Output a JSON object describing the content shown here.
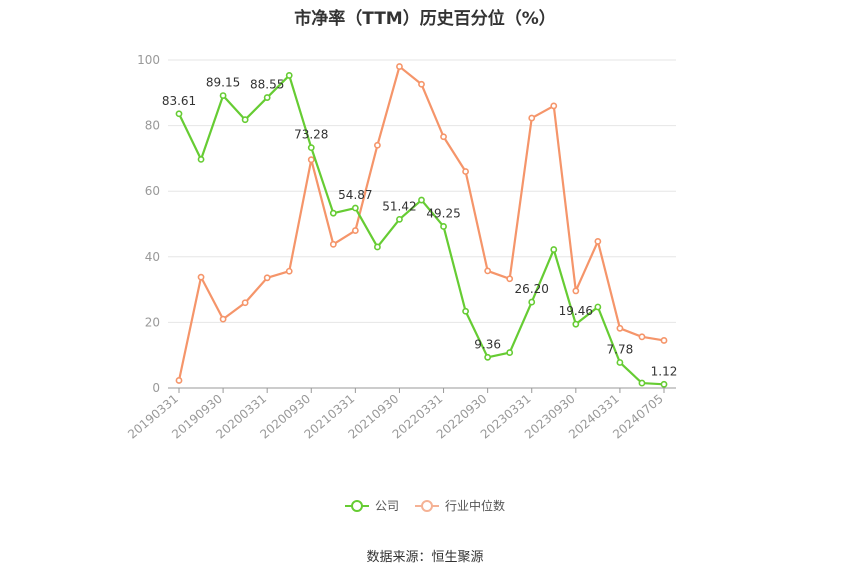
{
  "chart_data": {
    "type": "line",
    "title": "市净率（TTM）历史百分位（%）",
    "xlabel": "",
    "ylabel": "",
    "ylim": [
      0,
      100
    ],
    "yticks": [
      0,
      20,
      40,
      60,
      80,
      100
    ],
    "categories": [
      "20190331",
      "20190630",
      "20190930",
      "20191231",
      "20200331",
      "20200630",
      "20200930",
      "20201231",
      "20210331",
      "20210630",
      "20210930",
      "20211231",
      "20220331",
      "20220630",
      "20220930",
      "20221231",
      "20230331",
      "20230630",
      "20230930",
      "20231231",
      "20240331",
      "20240630",
      "20240705"
    ],
    "xtick_labels": [
      "20190331",
      "20190930",
      "20200331",
      "20200930",
      "20210331",
      "20210930",
      "20220331",
      "20220930",
      "20230331",
      "20230930",
      "20240331",
      "20240705"
    ],
    "series": [
      {
        "name": "公司",
        "color": "#66cc33",
        "values": [
          83.61,
          69.7,
          89.15,
          81.8,
          88.55,
          95.3,
          73.28,
          53.3,
          54.87,
          43.0,
          51.42,
          57.3,
          49.25,
          23.4,
          9.36,
          10.8,
          26.2,
          42.2,
          19.46,
          24.7,
          7.78,
          1.5,
          1.12
        ]
      },
      {
        "name": "行业中位数",
        "color": "#f5956a",
        "values": [
          2.3,
          33.8,
          21.0,
          26.0,
          33.6,
          35.6,
          69.6,
          43.8,
          48.0,
          74.0,
          98.0,
          92.6,
          76.6,
          66.0,
          35.7,
          33.3,
          82.3,
          86.0,
          29.6,
          44.7,
          18.2,
          15.6,
          14.5
        ]
      }
    ],
    "data_labels": {
      "series": "公司",
      "indices": [
        0,
        2,
        4,
        6,
        8,
        10,
        12,
        14,
        16,
        18,
        20,
        22
      ],
      "texts": [
        "83.61",
        "89.15",
        "88.55",
        "73.28",
        "54.87",
        "51.42",
        "49.25",
        "9.36",
        "26.20",
        "19.46",
        "7.78",
        "1.12"
      ]
    },
    "grid": true,
    "legend_position": "bottom"
  },
  "legend": [
    {
      "label": "公司",
      "color": "#66cc33"
    },
    {
      "label": "行业中位数",
      "color": "#f5956a"
    }
  ],
  "source_note": "数据来源：恒生聚源"
}
